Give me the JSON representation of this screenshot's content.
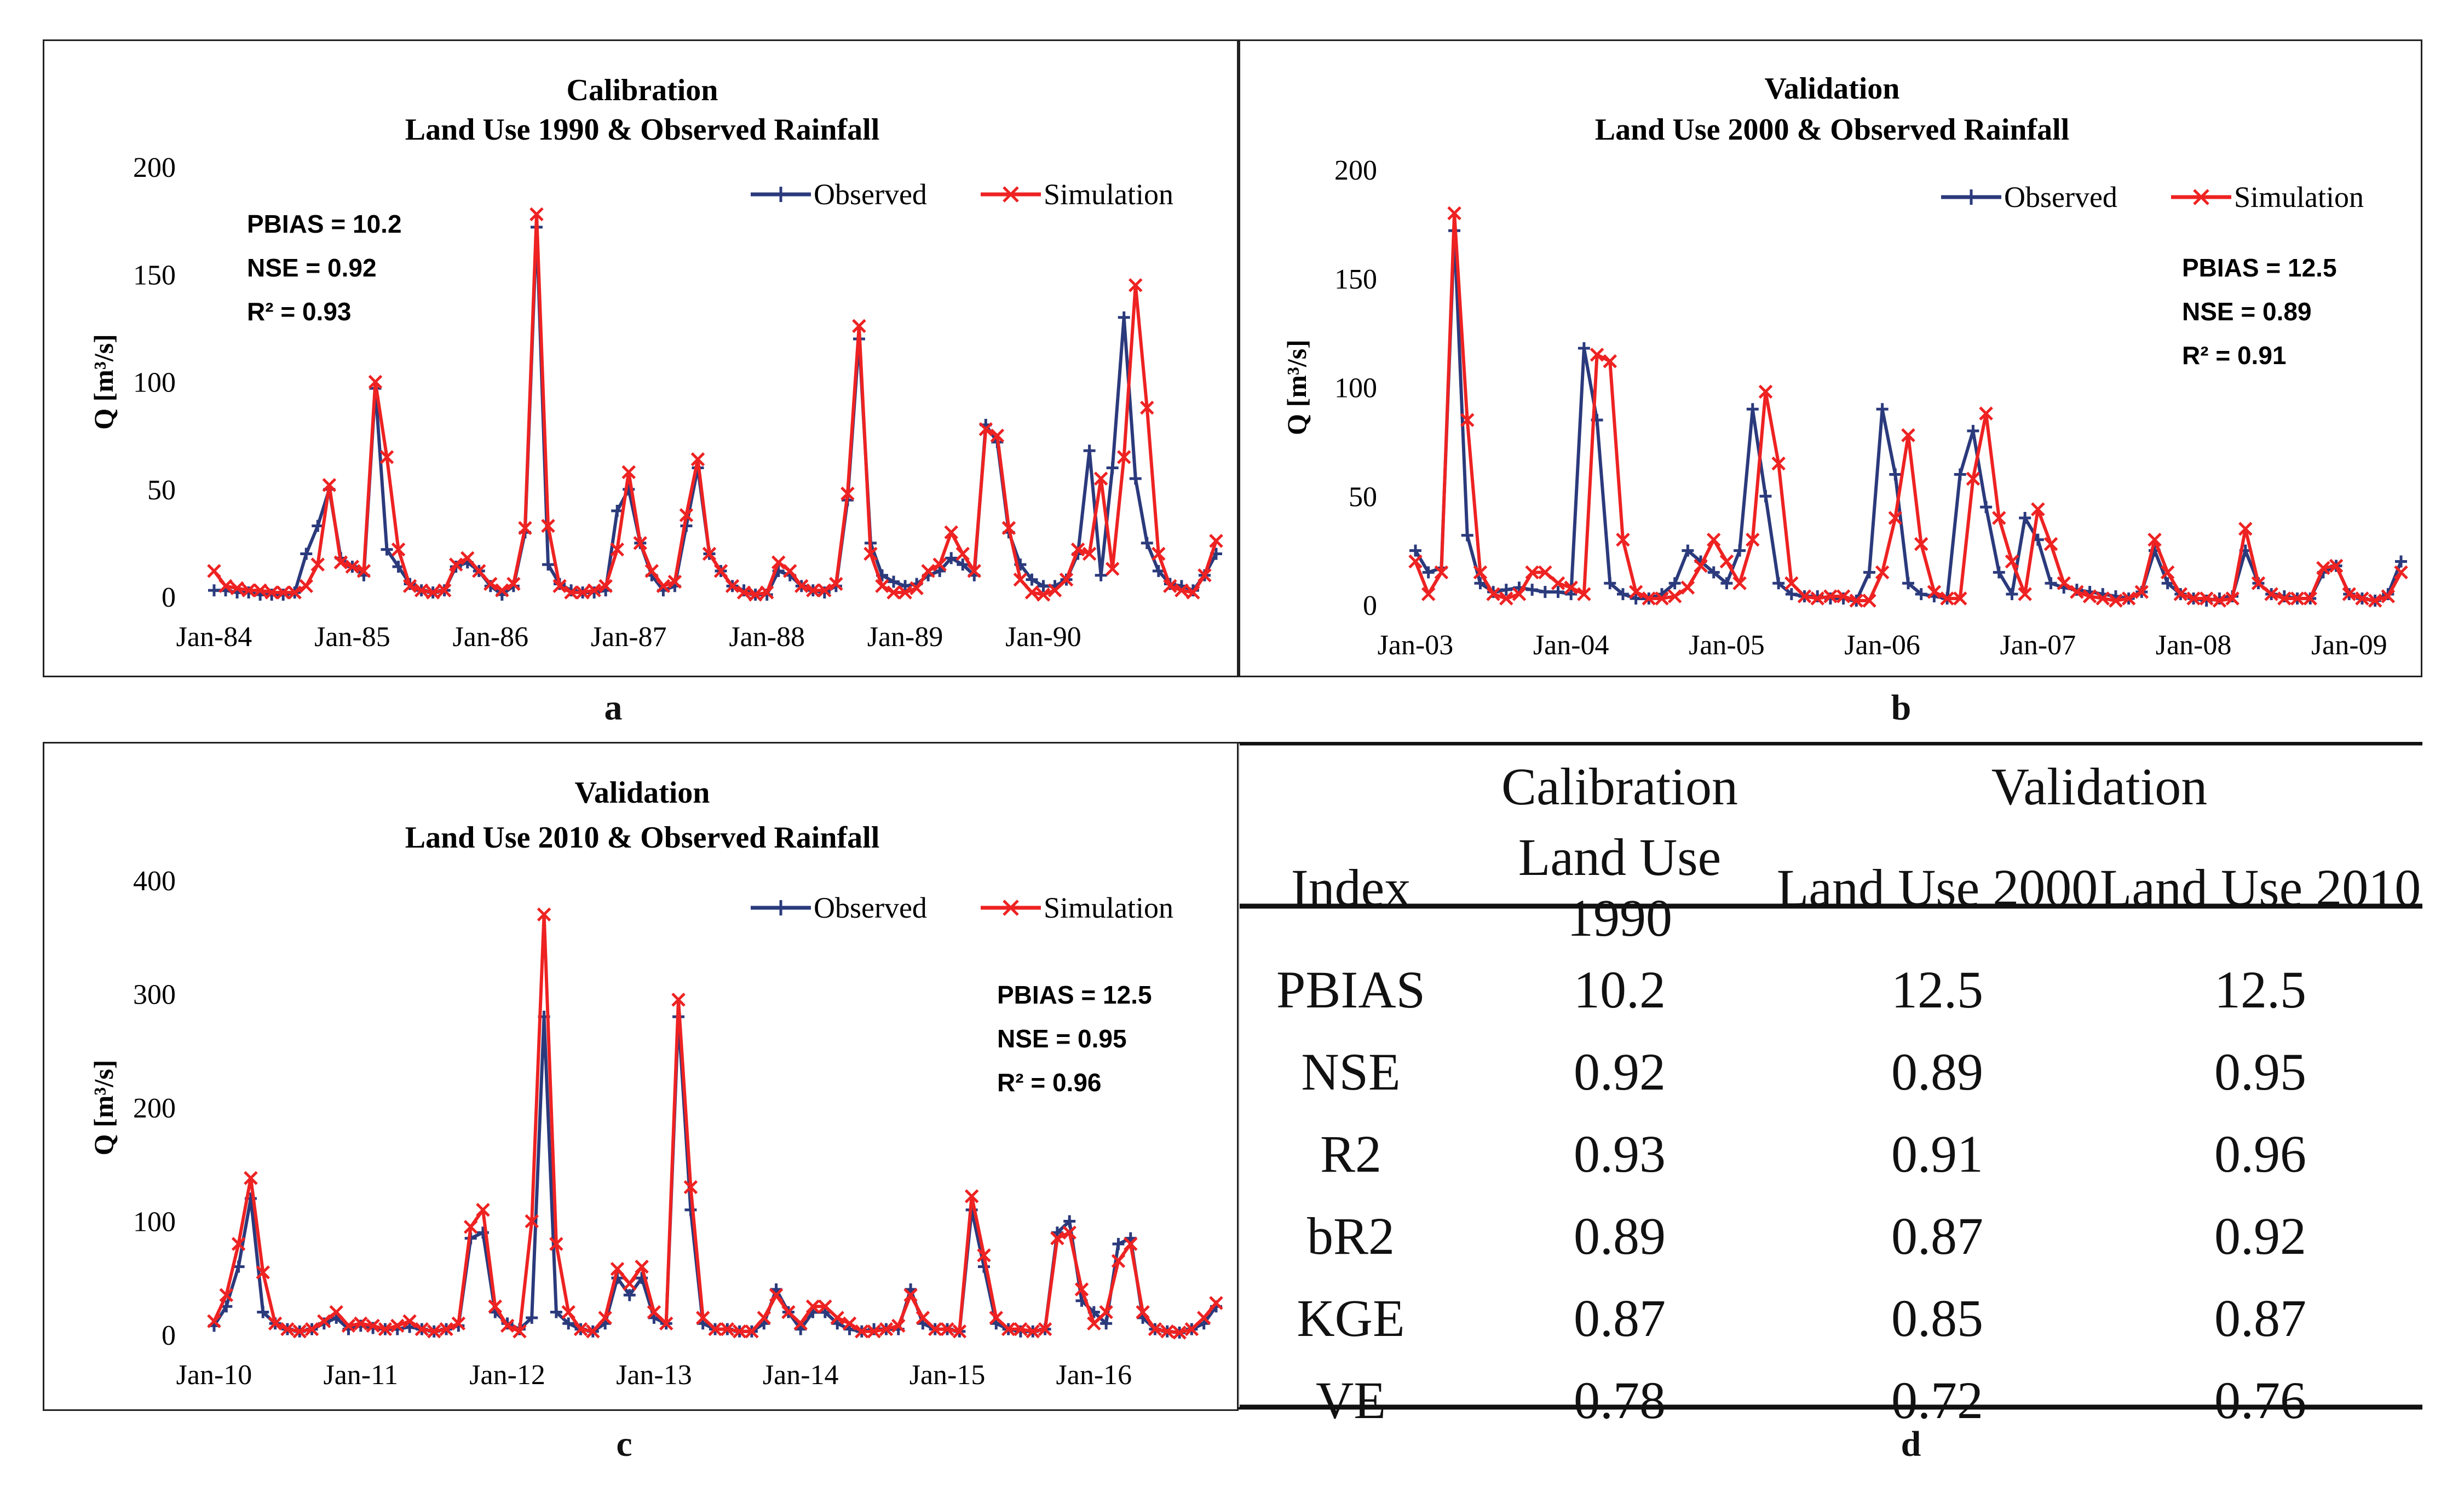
{
  "chart_data": [
    {
      "id": "a",
      "type": "line",
      "title": "Calibration",
      "subtitle": "Land Use 1990 & Observed Rainfall",
      "ylabel": "Q [m³/s]",
      "ylim": [
        0,
        200
      ],
      "yticks": [
        "0",
        "50",
        "100",
        "150",
        "200"
      ],
      "xtick_labels": [
        "Jan-84",
        "Jan-85",
        "Jan-86",
        "Jan-87",
        "Jan-88",
        "Jan-89",
        "Jan-90"
      ],
      "months_per_tick": 12,
      "legend": [
        "Observed",
        "Simulation"
      ],
      "legend_position": "top-right",
      "stats": [
        "PBIAS = 10.2",
        "NSE = 0.92",
        "R² = 0.93"
      ],
      "stats_position": "top-left",
      "series": [
        {
          "name": "Observed",
          "color": "#2b3a7c",
          "values": [
            3,
            3,
            2,
            2,
            1,
            1,
            1,
            2,
            20,
            33,
            50,
            18,
            14,
            10,
            97,
            22,
            14,
            6,
            3,
            2,
            3,
            14,
            16,
            12,
            5,
            1,
            5,
            30,
            172,
            15,
            6,
            3,
            2,
            2,
            3,
            40,
            50,
            25,
            10,
            3,
            5,
            33,
            60,
            20,
            12,
            5,
            3,
            1,
            1,
            12,
            10,
            5,
            3,
            2,
            5,
            45,
            120,
            25,
            10,
            7,
            5,
            6,
            10,
            12,
            18,
            15,
            10,
            80,
            72,
            30,
            15,
            8,
            5,
            5,
            8,
            20,
            68,
            10,
            60,
            130,
            55,
            25,
            12,
            6,
            5,
            3,
            10,
            20
          ]
        },
        {
          "name": "Simulation",
          "color": "#ee2222",
          "values": [
            12,
            5,
            4,
            3,
            3,
            2,
            2,
            2,
            5,
            15,
            52,
            16,
            14,
            12,
            100,
            65,
            22,
            5,
            3,
            2,
            3,
            15,
            18,
            12,
            6,
            3,
            6,
            32,
            178,
            33,
            5,
            2,
            2,
            3,
            5,
            22,
            58,
            25,
            12,
            5,
            7,
            38,
            64,
            20,
            12,
            5,
            2,
            1,
            2,
            16,
            12,
            5,
            3,
            3,
            6,
            48,
            126,
            20,
            5,
            2,
            2,
            4,
            12,
            15,
            30,
            20,
            12,
            78,
            75,
            32,
            8,
            2,
            1,
            3,
            8,
            22,
            20,
            55,
            13,
            65,
            145,
            88,
            20,
            5,
            3,
            2,
            10,
            26
          ]
        }
      ]
    },
    {
      "id": "b",
      "type": "line",
      "title": "Validation",
      "subtitle": "Land Use 2000 & Observed Rainfall",
      "ylabel": "Q [m³/s]",
      "ylim": [
        0,
        200
      ],
      "yticks": [
        "0",
        "50",
        "100",
        "150",
        "200"
      ],
      "xtick_labels": [
        "Jan-03",
        "Jan-04",
        "Jan-05",
        "Jan-06",
        "Jan-07",
        "Jan-08",
        "Jan-09"
      ],
      "months_per_tick": 12,
      "legend": [
        "Observed",
        "Simulation"
      ],
      "legend_position": "top-right",
      "stats": [
        "PBIAS = 12.5",
        "NSE = 0.89",
        "R² = 0.91"
      ],
      "stats_position": "top-right",
      "series": [
        {
          "name": "Observed",
          "color": "#2b3a7c",
          "values": [
            25,
            15,
            17,
            172,
            32,
            10,
            6,
            7,
            8,
            7,
            6,
            6,
            5,
            118,
            85,
            10,
            5,
            3,
            3,
            5,
            10,
            25,
            20,
            15,
            10,
            25,
            90,
            50,
            10,
            5,
            4,
            4,
            3,
            3,
            2,
            15,
            90,
            60,
            10,
            5,
            4,
            3,
            60,
            80,
            45,
            15,
            5,
            40,
            30,
            10,
            8,
            7,
            6,
            5,
            4,
            3,
            6,
            25,
            10,
            5,
            3,
            2,
            3,
            4,
            25,
            10,
            5,
            4,
            3,
            3,
            15,
            18,
            5,
            3,
            2,
            5,
            20
          ]
        },
        {
          "name": "Simulation",
          "color": "#ee2222",
          "values": [
            20,
            5,
            15,
            180,
            85,
            15,
            5,
            3,
            5,
            15,
            15,
            10,
            8,
            5,
            115,
            112,
            30,
            6,
            3,
            3,
            4,
            8,
            18,
            30,
            20,
            10,
            30,
            98,
            65,
            10,
            4,
            3,
            4,
            4,
            2,
            2,
            15,
            40,
            78,
            28,
            6,
            3,
            3,
            58,
            88,
            40,
            20,
            5,
            44,
            28,
            10,
            6,
            4,
            3,
            2,
            3,
            6,
            30,
            15,
            5,
            3,
            3,
            2,
            3,
            35,
            10,
            5,
            3,
            3,
            3,
            17,
            18,
            5,
            3,
            2,
            4,
            15
          ]
        }
      ]
    },
    {
      "id": "c",
      "type": "line",
      "title": "Validation",
      "subtitle": "Land Use 2010 & Observed Rainfall",
      "ylabel": "Q [m³/s]",
      "ylim": [
        0,
        400
      ],
      "yticks": [
        "0",
        "100",
        "200",
        "300",
        "400"
      ],
      "xtick_labels": [
        "Jan-10",
        "Jan-11",
        "Jan-12",
        "Jan-13",
        "Jan-14",
        "Jan-15",
        "Jan-16"
      ],
      "months_per_tick": 12,
      "legend": [
        "Observed",
        "Simulation"
      ],
      "legend_position": "top-right",
      "stats": [
        "PBIAS = 12.5",
        "NSE = 0.95",
        "R² = 0.96"
      ],
      "stats_position": "top-right",
      "series": [
        {
          "name": "Observed",
          "color": "#2b3a7c",
          "values": [
            8,
            25,
            60,
            120,
            20,
            10,
            5,
            3,
            5,
            10,
            15,
            5,
            8,
            6,
            5,
            5,
            7,
            5,
            3,
            5,
            8,
            85,
            90,
            20,
            10,
            5,
            15,
            280,
            20,
            10,
            5,
            3,
            10,
            50,
            35,
            50,
            15,
            10,
            280,
            110,
            10,
            5,
            5,
            3,
            3,
            10,
            40,
            20,
            5,
            20,
            20,
            10,
            5,
            3,
            5,
            5,
            5,
            40,
            10,
            5,
            5,
            3,
            110,
            60,
            10,
            5,
            3,
            3,
            5,
            90,
            100,
            30,
            20,
            10,
            80,
            85,
            15,
            5,
            3,
            2,
            5,
            10,
            25
          ]
        },
        {
          "name": "Simulation",
          "color": "#ee2222",
          "values": [
            12,
            35,
            80,
            138,
            55,
            10,
            5,
            3,
            5,
            12,
            20,
            8,
            10,
            8,
            5,
            8,
            12,
            5,
            3,
            5,
            10,
            95,
            110,
            25,
            8,
            3,
            100,
            370,
            80,
            20,
            5,
            3,
            15,
            58,
            45,
            60,
            20,
            10,
            295,
            130,
            15,
            5,
            5,
            3,
            3,
            15,
            35,
            20,
            10,
            25,
            25,
            15,
            10,
            3,
            3,
            5,
            8,
            35,
            15,
            5,
            5,
            3,
            122,
            70,
            15,
            5,
            5,
            3,
            5,
            85,
            90,
            40,
            10,
            20,
            65,
            80,
            20,
            5,
            3,
            2,
            5,
            15,
            28
          ]
        }
      ]
    },
    {
      "id": "d",
      "type": "table",
      "group_headers": [
        "Calibration",
        "Validation"
      ],
      "columns": [
        "Index",
        "Land Use 1990",
        "Land Use 2000",
        "Land Use 2010"
      ],
      "rows": [
        [
          "PBIAS",
          "10.2",
          "12.5",
          "12.5"
        ],
        [
          "NSE",
          "0.92",
          "0.89",
          "0.95"
        ],
        [
          "R2",
          "0.93",
          "0.91",
          "0.96"
        ],
        [
          "bR2",
          "0.89",
          "0.87",
          "0.92"
        ],
        [
          "KGE",
          "0.87",
          "0.85",
          "0.87"
        ],
        [
          "VE",
          "0.78",
          "0.72",
          "0.76"
        ]
      ]
    }
  ],
  "panel_labels": [
    "a",
    "b",
    "c",
    "d"
  ]
}
